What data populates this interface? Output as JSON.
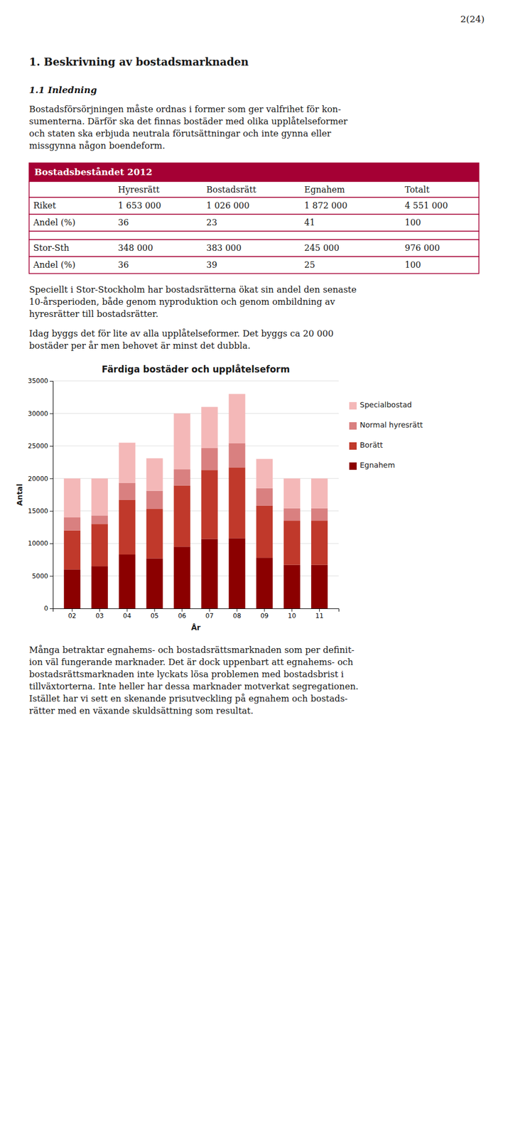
{
  "page_number": "2(24)",
  "section_title": "1. Beskrivning av bostadsmarknaden",
  "subsection_title": "1.1 Inledning",
  "paragraphs": [
    [
      "Bostadsförsörjningen måste ordnas i former som ger valfrihet för kon-",
      "sumenterna. Därför ska det finnas bostäder med olika upplåtelseformer",
      "och staten ska erbjuda neutrala förutsättningar och inte gynna eller",
      "missgynna någon boendeform."
    ],
    [
      "Speciellt i Stor-Stockholm har bostadsrätterna ökat sin andel den senaste",
      "10-årsperioden, både genom nyproduktion och genom ombildning av",
      "hyresrätter till bostadsrätter."
    ],
    [
      "Idag byggs det för lite av alla upplåtelseformer. Det byggs ca 20 000",
      "bostäder per år men behovet är minst det dubbla."
    ],
    [
      "Många betraktar egnahems- och bostadsrättsmarknaden som per definit-",
      "ion väl fungerande marknader. Det är dock uppenbart att egnahems- och",
      "bostadsrättsmarknaden inte lyckats lösa problemen med bostadsbrist i",
      "tillväxtorterna. Inte heller har dessa marknader motverkat segregationen.",
      "Istället har vi sett en skenande prisutveckling på egnahem och bostads-",
      "rätter med en växande skuldsättning som resultat."
    ]
  ],
  "table": {
    "title": "Bostadsbeståndet 2012",
    "color": "#a50034",
    "header": [
      null,
      "Hyresrätt",
      "Bostadsrätt",
      "Egnahem",
      "Totalt"
    ],
    "groups": [
      [
        [
          "Riket",
          "1 653 000",
          "1 026 000",
          "1 872 000",
          "4 551 000"
        ],
        [
          "Andel (%)",
          "36",
          "23",
          "41",
          "100"
        ]
      ],
      [
        [
          "Stor-Sth",
          "348 000",
          "383 000",
          "245 000",
          "976 000"
        ],
        [
          "Andel (%)",
          "36",
          "39",
          "25",
          "100"
        ]
      ]
    ]
  },
  "chart_data": {
    "type": "bar",
    "stacked": true,
    "title": "Färdiga bostäder och upplåtelseform",
    "x_label": "År",
    "y_label": "Antal",
    "categories": [
      "02",
      "03",
      "04",
      "05",
      "06",
      "07",
      "08",
      "09",
      "10",
      "11"
    ],
    "series": [
      {
        "name": "Egnahem",
        "color": "#8b0000",
        "values": [
          6000,
          6500,
          8300,
          7700,
          9500,
          10700,
          10800,
          7800,
          6700,
          6700
        ]
      },
      {
        "name": "Borätt",
        "color": "#c0392b",
        "values": [
          6000,
          6500,
          8400,
          7600,
          9400,
          10600,
          10900,
          8000,
          6800,
          6800
        ]
      },
      {
        "name": "Normal hyresrätt",
        "color": "#d98080",
        "values": [
          2000,
          1300,
          2600,
          2800,
          2500,
          3400,
          3700,
          2700,
          1900,
          1900
        ]
      },
      {
        "name": "Specialbostad",
        "color": "#f4b8b8",
        "values": [
          6000,
          5700,
          6200,
          5000,
          8600,
          6300,
          7600,
          4500,
          4600,
          4600
        ]
      }
    ],
    "ylim": [
      0,
      35000
    ],
    "yticks": [
      0,
      5000,
      10000,
      15000,
      20000,
      25000,
      30000,
      35000
    ],
    "grid": true,
    "legend": "right"
  }
}
